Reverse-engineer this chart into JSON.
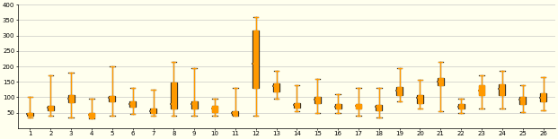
{
  "n_dmas": 26,
  "background_color": "#ffffee",
  "grid_color": "#bbbbbb",
  "ylim": [
    0,
    400
  ],
  "yticks": [
    50,
    100,
    150,
    200,
    250,
    300,
    350,
    400
  ],
  "box1_color": "#222222",
  "box2_color": "#ff9900",
  "boxes1": [
    {
      "dma": 1,
      "min": 35,
      "q1": 40,
      "med": 45,
      "q3": 50,
      "max": 100
    },
    {
      "dma": 2,
      "min": 40,
      "q1": 58,
      "med": 65,
      "q3": 72,
      "max": 170
    },
    {
      "dma": 3,
      "min": 35,
      "q1": 85,
      "med": 95,
      "q3": 108,
      "max": 180
    },
    {
      "dma": 4,
      "min": 30,
      "q1": 35,
      "med": 42,
      "q3": 50,
      "max": 95
    },
    {
      "dma": 5,
      "min": 40,
      "q1": 88,
      "med": 98,
      "q3": 105,
      "max": 200
    },
    {
      "dma": 6,
      "min": 45,
      "q1": 68,
      "med": 78,
      "q3": 88,
      "max": 130
    },
    {
      "dma": 7,
      "min": 40,
      "q1": 48,
      "med": 55,
      "q3": 62,
      "max": 125
    },
    {
      "dma": 8,
      "min": 40,
      "q1": 62,
      "med": 78,
      "q3": 148,
      "max": 215
    },
    {
      "dma": 9,
      "min": 40,
      "q1": 62,
      "med": 78,
      "q3": 88,
      "max": 195
    },
    {
      "dma": 10,
      "min": 40,
      "q1": 52,
      "med": 62,
      "q3": 72,
      "max": 95
    },
    {
      "dma": 11,
      "min": 40,
      "q1": 44,
      "med": 50,
      "q3": 55,
      "max": 130
    },
    {
      "dma": 12,
      "min": 40,
      "q1": 130,
      "med": 210,
      "q3": 315,
      "max": 360
    },
    {
      "dma": 13,
      "min": 95,
      "q1": 120,
      "med": 135,
      "q3": 145,
      "max": 185
    },
    {
      "dma": 14,
      "min": 55,
      "q1": 65,
      "med": 74,
      "q3": 80,
      "max": 140
    },
    {
      "dma": 15,
      "min": 50,
      "q1": 82,
      "med": 92,
      "q3": 102,
      "max": 160
    },
    {
      "dma": 16,
      "min": 50,
      "q1": 62,
      "med": 68,
      "q3": 78,
      "max": 110
    },
    {
      "dma": 17,
      "min": 40,
      "q1": 62,
      "med": 72,
      "q3": 78,
      "max": 130
    },
    {
      "dma": 18,
      "min": 35,
      "q1": 58,
      "med": 68,
      "q3": 74,
      "max": 130
    },
    {
      "dma": 19,
      "min": 88,
      "q1": 108,
      "med": 122,
      "q3": 132,
      "max": 195
    },
    {
      "dma": 20,
      "min": 62,
      "q1": 82,
      "med": 98,
      "q3": 108,
      "max": 155
    },
    {
      "dma": 21,
      "min": 55,
      "q1": 138,
      "med": 152,
      "q3": 162,
      "max": 215
    },
    {
      "dma": 22,
      "min": 50,
      "q1": 62,
      "med": 70,
      "q3": 78,
      "max": 95
    },
    {
      "dma": 23,
      "min": 62,
      "q1": 108,
      "med": 122,
      "q3": 138,
      "max": 170
    },
    {
      "dma": 24,
      "min": 62,
      "q1": 108,
      "med": 128,
      "q3": 142,
      "max": 185
    },
    {
      "dma": 25,
      "min": 52,
      "q1": 78,
      "med": 92,
      "q3": 102,
      "max": 140
    },
    {
      "dma": 26,
      "min": 58,
      "q1": 88,
      "med": 98,
      "q3": 112,
      "max": 165
    }
  ],
  "boxes2": [
    {
      "dma": 1,
      "min": 35,
      "q1": 40,
      "med": 45,
      "q3": 50,
      "max": 100
    },
    {
      "dma": 2,
      "min": 40,
      "q1": 58,
      "med": 65,
      "q3": 72,
      "max": 170
    },
    {
      "dma": 3,
      "min": 35,
      "q1": 85,
      "med": 95,
      "q3": 108,
      "max": 180
    },
    {
      "dma": 4,
      "min": 30,
      "q1": 35,
      "med": 42,
      "q3": 50,
      "max": 95
    },
    {
      "dma": 5,
      "min": 40,
      "q1": 88,
      "med": 98,
      "q3": 105,
      "max": 200
    },
    {
      "dma": 6,
      "min": 45,
      "q1": 68,
      "med": 78,
      "q3": 88,
      "max": 130
    },
    {
      "dma": 7,
      "min": 40,
      "q1": 48,
      "med": 55,
      "q3": 62,
      "max": 125
    },
    {
      "dma": 8,
      "min": 40,
      "q1": 62,
      "med": 78,
      "q3": 148,
      "max": 215
    },
    {
      "dma": 9,
      "min": 40,
      "q1": 62,
      "med": 78,
      "q3": 88,
      "max": 195
    },
    {
      "dma": 10,
      "min": 40,
      "q1": 52,
      "med": 62,
      "q3": 72,
      "max": 95
    },
    {
      "dma": 11,
      "min": 40,
      "q1": 44,
      "med": 50,
      "q3": 55,
      "max": 130
    },
    {
      "dma": 12,
      "min": 40,
      "q1": 130,
      "med": 210,
      "q3": 315,
      "max": 360
    },
    {
      "dma": 13,
      "min": 95,
      "q1": 120,
      "med": 135,
      "q3": 145,
      "max": 185
    },
    {
      "dma": 14,
      "min": 55,
      "q1": 65,
      "med": 74,
      "q3": 80,
      "max": 140
    },
    {
      "dma": 15,
      "min": 50,
      "q1": 82,
      "med": 92,
      "q3": 102,
      "max": 160
    },
    {
      "dma": 16,
      "min": 50,
      "q1": 62,
      "med": 68,
      "q3": 78,
      "max": 110
    },
    {
      "dma": 17,
      "min": 40,
      "q1": 62,
      "med": 72,
      "q3": 78,
      "max": 130
    },
    {
      "dma": 18,
      "min": 35,
      "q1": 58,
      "med": 68,
      "q3": 74,
      "max": 130
    },
    {
      "dma": 19,
      "min": 88,
      "q1": 108,
      "med": 122,
      "q3": 132,
      "max": 195
    },
    {
      "dma": 20,
      "min": 62,
      "q1": 82,
      "med": 98,
      "q3": 108,
      "max": 155
    },
    {
      "dma": 21,
      "min": 55,
      "q1": 138,
      "med": 152,
      "q3": 162,
      "max": 215
    },
    {
      "dma": 22,
      "min": 50,
      "q1": 62,
      "med": 70,
      "q3": 78,
      "max": 95
    },
    {
      "dma": 23,
      "min": 62,
      "q1": 108,
      "med": 122,
      "q3": 138,
      "max": 170
    },
    {
      "dma": 24,
      "min": 62,
      "q1": 108,
      "med": 128,
      "q3": 142,
      "max": 185
    },
    {
      "dma": 25,
      "min": 52,
      "q1": 78,
      "med": 92,
      "q3": 102,
      "max": 140
    },
    {
      "dma": 26,
      "min": 58,
      "q1": 88,
      "med": 98,
      "q3": 112,
      "max": 165
    }
  ],
  "means_orange": [
    45,
    67,
    95,
    44,
    98,
    78,
    54,
    100,
    80,
    62,
    50,
    212,
    133,
    72,
    90,
    68,
    70,
    63,
    120,
    96,
    152,
    68,
    120,
    124,
    90,
    98
  ]
}
